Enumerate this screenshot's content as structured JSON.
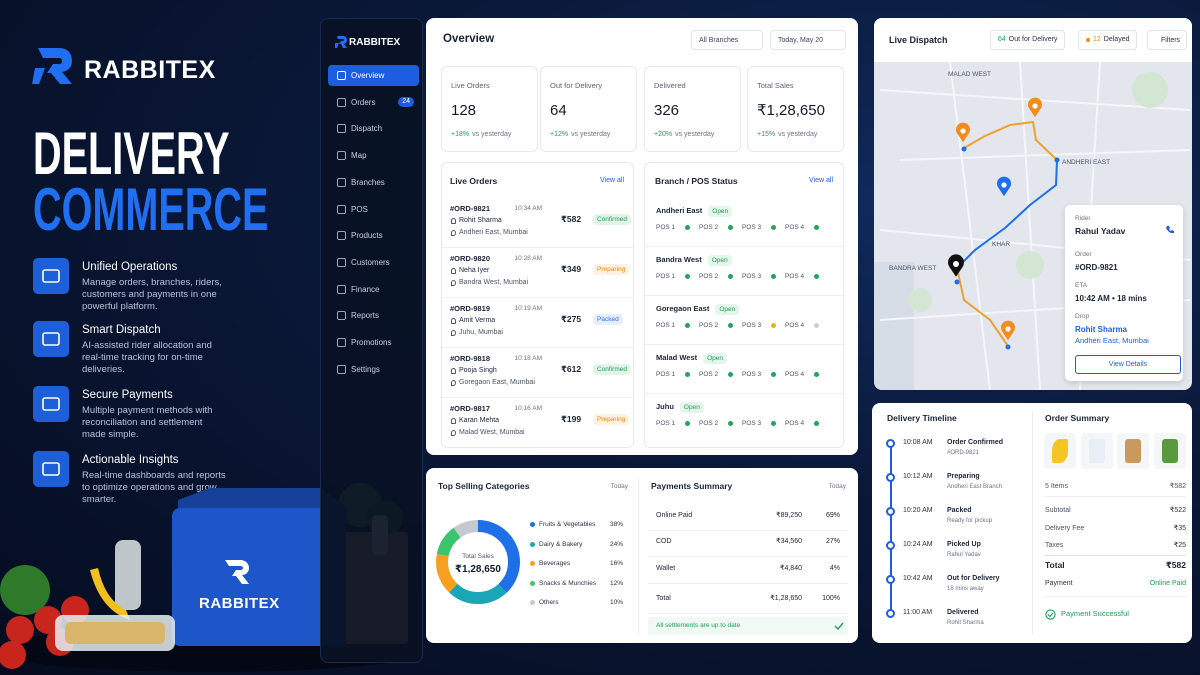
{
  "hero": {
    "brand": "RABBITEX",
    "title_line1": "DELIVERY",
    "title_line2": "COMMERCE",
    "features": [
      {
        "title": "Unified Operations",
        "description": "Manage orders, branches, riders, customers and payments in one powerful platform."
      },
      {
        "title": "Smart Dispatch",
        "description": "AI-assisted rider allocation and real-time tracking for on-time deliveries."
      },
      {
        "title": "Secure Payments",
        "description": "Multiple payment methods with reconciliation and settlement made simple."
      },
      {
        "title": "Actionable Insights",
        "description": "Real-time dashboards and reports to optimize operations and grow smarter."
      }
    ],
    "bag_label": "RABBITEX"
  },
  "sidebar": {
    "brand": "RABBITEX",
    "active_index": 0,
    "nav": [
      {
        "label": "Overview"
      },
      {
        "label": "Orders",
        "badge": "24"
      },
      {
        "label": "Dispatch"
      },
      {
        "label": "Map"
      },
      {
        "label": "Branches"
      },
      {
        "label": "POS"
      },
      {
        "label": "Products"
      },
      {
        "label": "Customers"
      },
      {
        "label": "Finance"
      },
      {
        "label": "Reports"
      },
      {
        "label": "Promotions"
      },
      {
        "label": "Settings"
      }
    ]
  },
  "overview": {
    "title": "Overview",
    "branch_filter": "All Branches",
    "date": "Today, May 20",
    "kpis": [
      {
        "label": "Live Orders",
        "value": "128",
        "change": "+18%",
        "note": "vs yesterday"
      },
      {
        "label": "Out for Delivery",
        "value": "64",
        "change": "+12%",
        "note": "vs yesterday"
      },
      {
        "label": "Delivered",
        "value": "326",
        "change": "+20%",
        "note": "vs yesterday"
      },
      {
        "label": "Total Sales",
        "value": "₹1,28,650",
        "change": "+15%",
        "note": "vs yesterday"
      }
    ]
  },
  "live_orders": {
    "title": "Live Orders",
    "link": "View all",
    "rows": [
      {
        "id": "#ORD-9821",
        "time": "10:34 AM",
        "name": "Rohit Sharma",
        "location": "Andheri East, Mumbai",
        "amount": "₹582",
        "status": "Confirmed",
        "status_color": "#1f9d55"
      },
      {
        "id": "#ORD-9820",
        "time": "10:28 AM",
        "name": "Neha Iyer",
        "location": "Bandra West, Mumbai",
        "amount": "₹349",
        "status": "Preparing",
        "status_color": "#e98a12"
      },
      {
        "id": "#ORD-9819",
        "time": "10:19 AM",
        "name": "Amit Verma",
        "location": "Juhu, Mumbai",
        "amount": "₹275",
        "status": "Packed",
        "status_color": "#2f6fdf"
      },
      {
        "id": "#ORD-9818",
        "time": "10:18 AM",
        "name": "Pooja Singh",
        "location": "Goregaon East, Mumbai",
        "amount": "₹612",
        "status": "Confirmed",
        "status_color": "#1f9d55"
      },
      {
        "id": "#ORD-9817",
        "time": "10:16 AM",
        "name": "Karan Mehta",
        "location": "Malad West, Mumbai",
        "amount": "₹199",
        "status": "Preparing",
        "status_color": "#e98a12"
      }
    ]
  },
  "branch_status": {
    "title": "Branch / POS Status",
    "link": "View all",
    "rows": [
      {
        "name": "Andheri East",
        "status": "Open",
        "pos": [
          "POS 1",
          "POS 2",
          "POS 3",
          "POS 4"
        ],
        "pos_colors": [
          "#22a45d",
          "#22a45d",
          "#22a45d",
          "#22a45d"
        ]
      },
      {
        "name": "Bandra West",
        "status": "Open",
        "pos": [
          "POS 1",
          "POS 2",
          "POS 3",
          "POS 4"
        ],
        "pos_colors": [
          "#22a45d",
          "#22a45d",
          "#22a45d",
          "#22a45d"
        ]
      },
      {
        "name": "Goregaon East",
        "status": "Open",
        "pos": [
          "POS 1",
          "POS 2",
          "POS 3",
          "POS 4"
        ],
        "pos_colors": [
          "#22a45d",
          "#22a45d",
          "#e8b515",
          "#c9ced6"
        ]
      },
      {
        "name": "Malad West",
        "status": "Open",
        "pos": [
          "POS 1",
          "POS 2",
          "POS 3",
          "POS 4"
        ],
        "pos_colors": [
          "#22a45d",
          "#22a45d",
          "#22a45d",
          "#22a45d"
        ]
      },
      {
        "name": "Juhu",
        "status": "Open",
        "pos": [
          "POS 1",
          "POS 2",
          "POS 3",
          "POS 4"
        ],
        "pos_colors": [
          "#22a45d",
          "#22a45d",
          "#22a45d",
          "#22a45d"
        ]
      }
    ]
  },
  "top_categories": {
    "title": "Top Selling Categories",
    "period": "Today",
    "center_label": "Total Sales",
    "center_value": "₹1,28,650",
    "names": [
      "Fruits & Vegetables",
      "Dairy & Bakery",
      "Beverages",
      "Snacks & Munchies",
      "Others"
    ],
    "values": [
      38,
      24,
      16,
      12,
      10
    ],
    "value_labels": [
      "38%",
      "24%",
      "16%",
      "12%",
      "10%"
    ],
    "colors": [
      "#1e6fe8",
      "#1aa6b7",
      "#f5a01f",
      "#3cc46e",
      "#c4c9d2"
    ]
  },
  "payments": {
    "title": "Payments Summary",
    "period": "Today",
    "rows": [
      {
        "method": "Online Paid",
        "amount": "₹89,250",
        "share": "69%"
      },
      {
        "method": "COD",
        "amount": "₹34,560",
        "share": "27%"
      },
      {
        "method": "Wallet",
        "amount": "₹4,840",
        "share": "4%"
      },
      {
        "method": "Total",
        "amount": "₹1,28,650",
        "share": "100%"
      }
    ],
    "footer": "All settlements are up to date"
  },
  "dispatch": {
    "title": "Live Dispatch",
    "out_count": "64",
    "out_label": "Out for Delivery",
    "delayed_count": "12",
    "delayed_label": "Delayed",
    "filters": "Filters",
    "map_labels": [
      "MALAD WEST",
      "ANDHERI EAST",
      "KHAR",
      "BANDRA WEST"
    ],
    "rider_card": {
      "rider_label": "Rider",
      "rider": "Rahul Yadav",
      "order_label": "Order",
      "order": "#ORD-9821",
      "eta_label": "ETA",
      "eta": "10:42 AM • 18 mins",
      "drop_label": "Drop",
      "drop_name": "Rohit Sharma",
      "drop_location": "Andheri East, Mumbai",
      "button": "View Details"
    }
  },
  "timeline": {
    "title": "Delivery Timeline",
    "events": [
      {
        "time": "10:08 AM",
        "title": "Order Confirmed",
        "sub": "#ORD-9821"
      },
      {
        "time": "10:12 AM",
        "title": "Preparing",
        "sub": "Andheri East Branch"
      },
      {
        "time": "10:20 AM",
        "title": "Packed",
        "sub": "Ready for pickup"
      },
      {
        "time": "10:24 AM",
        "title": "Picked Up",
        "sub": "Rahul Yadav"
      },
      {
        "time": "10:42 AM",
        "title": "Out for Delivery",
        "sub": "18 mins away"
      },
      {
        "time": "11:00 AM",
        "title": "Delivered",
        "sub": "Rohit Sharma"
      }
    ]
  },
  "order_summary": {
    "title": "Order Summary",
    "items_count": "5 Items",
    "items_total": "₹582",
    "lines": [
      {
        "label": "Subtotal",
        "value": "₹522"
      },
      {
        "label": "Delivery Fee",
        "value": "₹35"
      },
      {
        "label": "Taxes",
        "value": "₹25"
      }
    ],
    "total_label": "Total",
    "total_value": "₹582",
    "payment_label": "Payment",
    "payment_value": "Online Paid",
    "status": "Payment Successful"
  }
}
